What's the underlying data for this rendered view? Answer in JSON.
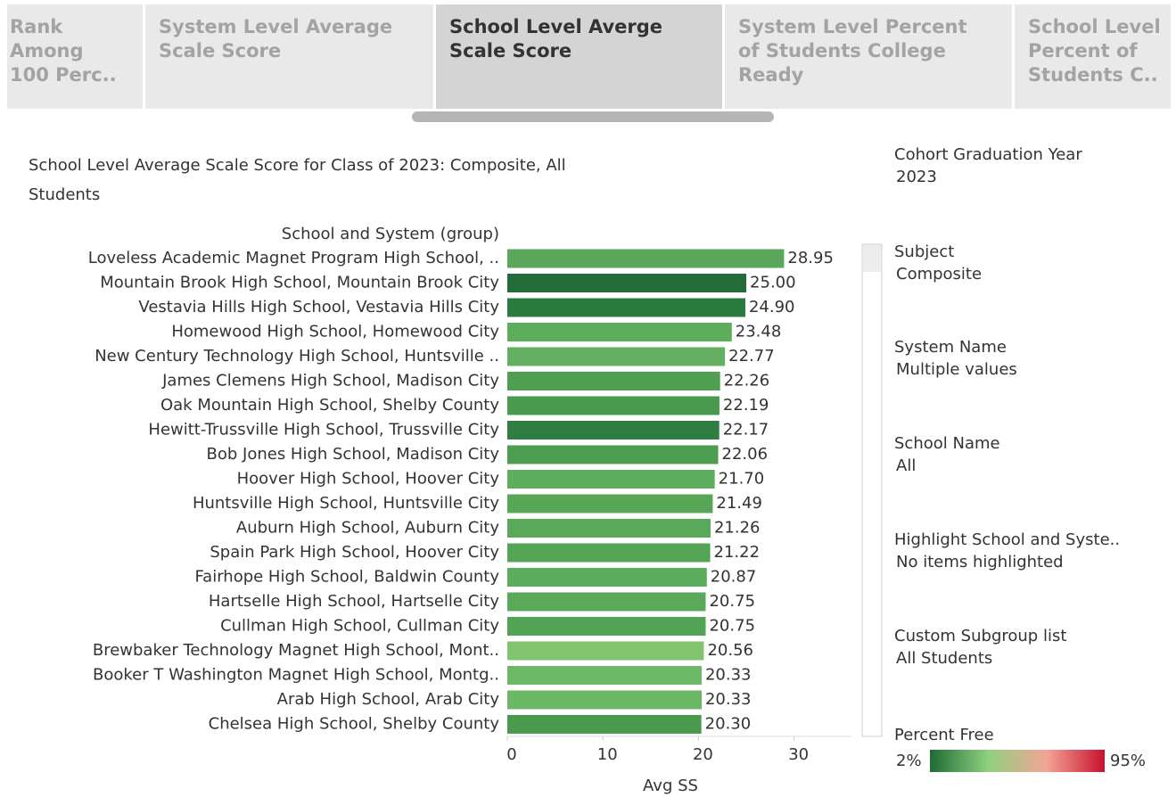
{
  "tabs": [
    [
      "Rank",
      "Among",
      "100 Perc.."
    ],
    [
      "System Level Average",
      "Scale Score"
    ],
    [
      "School Level Averge",
      "Scale Score"
    ],
    [
      "System Level Percent",
      "of Students College",
      "Ready"
    ],
    [
      "School Level",
      "Percent of",
      "Students C.."
    ]
  ],
  "active_tab": 2,
  "chart_data": {
    "type": "bar",
    "orientation": "horizontal",
    "title": [
      "School Level Average Scale Score for Class of 2023: Composite, All",
      "Students"
    ],
    "y_label": "School and System (group)",
    "x_label": "Avg SS",
    "categories": [
      "Loveless Academic Magnet Program High School, ..",
      "Mountain Brook High School, Mountain Brook City",
      "Vestavia Hills High School, Vestavia Hills City",
      "Homewood High School, Homewood City",
      "New Century Technology High School, Huntsville ..",
      "James Clemens High School, Madison City",
      "Oak Mountain High School, Shelby County",
      "Hewitt-Trussville High School, Trussville City",
      "Bob Jones High School, Madison City",
      "Hoover High School, Hoover City",
      "Huntsville High School, Huntsville City",
      "Auburn High School, Auburn City",
      "Spain Park High School, Hoover City",
      "Fairhope High School, Baldwin County",
      "Hartselle High School, Hartselle City",
      "Cullman High School, Cullman City",
      "Brewbaker Technology Magnet High School, Mont..",
      "Booker T Washington Magnet High School, Montg..",
      "Arab High School, Arab City",
      "Chelsea High School, Shelby County"
    ],
    "values": [
      28.95,
      25.0,
      24.9,
      23.48,
      22.77,
      22.26,
      22.19,
      22.17,
      22.06,
      21.7,
      21.49,
      21.26,
      21.22,
      20.87,
      20.75,
      20.75,
      20.56,
      20.33,
      20.33,
      20.3
    ],
    "value_labels": [
      "28.95",
      "25.00",
      "24.90",
      "23.48",
      "22.77",
      "22.26",
      "22.19",
      "22.17",
      "22.06",
      "21.70",
      "21.49",
      "21.26",
      "21.22",
      "20.87",
      "20.75",
      "20.75",
      "20.56",
      "20.33",
      "20.33",
      "20.30"
    ],
    "colors": [
      "#5aa65a",
      "#236b38",
      "#2a7a3f",
      "#5ead5c",
      "#62b060",
      "#4f9e51",
      "#4a9a4e",
      "#2f7d40",
      "#4d9d50",
      "#5fae5d",
      "#57a757",
      "#5aa95a",
      "#53a455",
      "#5dab5c",
      "#5aa85a",
      "#52a354",
      "#80c470",
      "#6cb866",
      "#6ab765",
      "#4a9a4e"
    ],
    "xlim": [
      0,
      36
    ],
    "xticks": [
      0,
      10,
      20,
      30
    ]
  },
  "filters": [
    {
      "label": "Cohort Graduation Year",
      "value": "2023"
    },
    {
      "label": "Subject",
      "value": "Composite"
    },
    {
      "label": "System Name",
      "value": "Multiple values"
    },
    {
      "label": "School Name",
      "value": "All"
    },
    {
      "label": "Highlight School and Syste..",
      "value": "No items highlighted"
    },
    {
      "label": "Custom Subgroup list",
      "value": "All Students"
    }
  ],
  "legend": {
    "title": "Percent Free",
    "min": {
      "value": 2,
      "label": "2%"
    },
    "max": {
      "value": 95,
      "label": "95%"
    },
    "colors": [
      "#1e6b35",
      "#8fd07e",
      "#f3a596",
      "#c8102e"
    ]
  }
}
